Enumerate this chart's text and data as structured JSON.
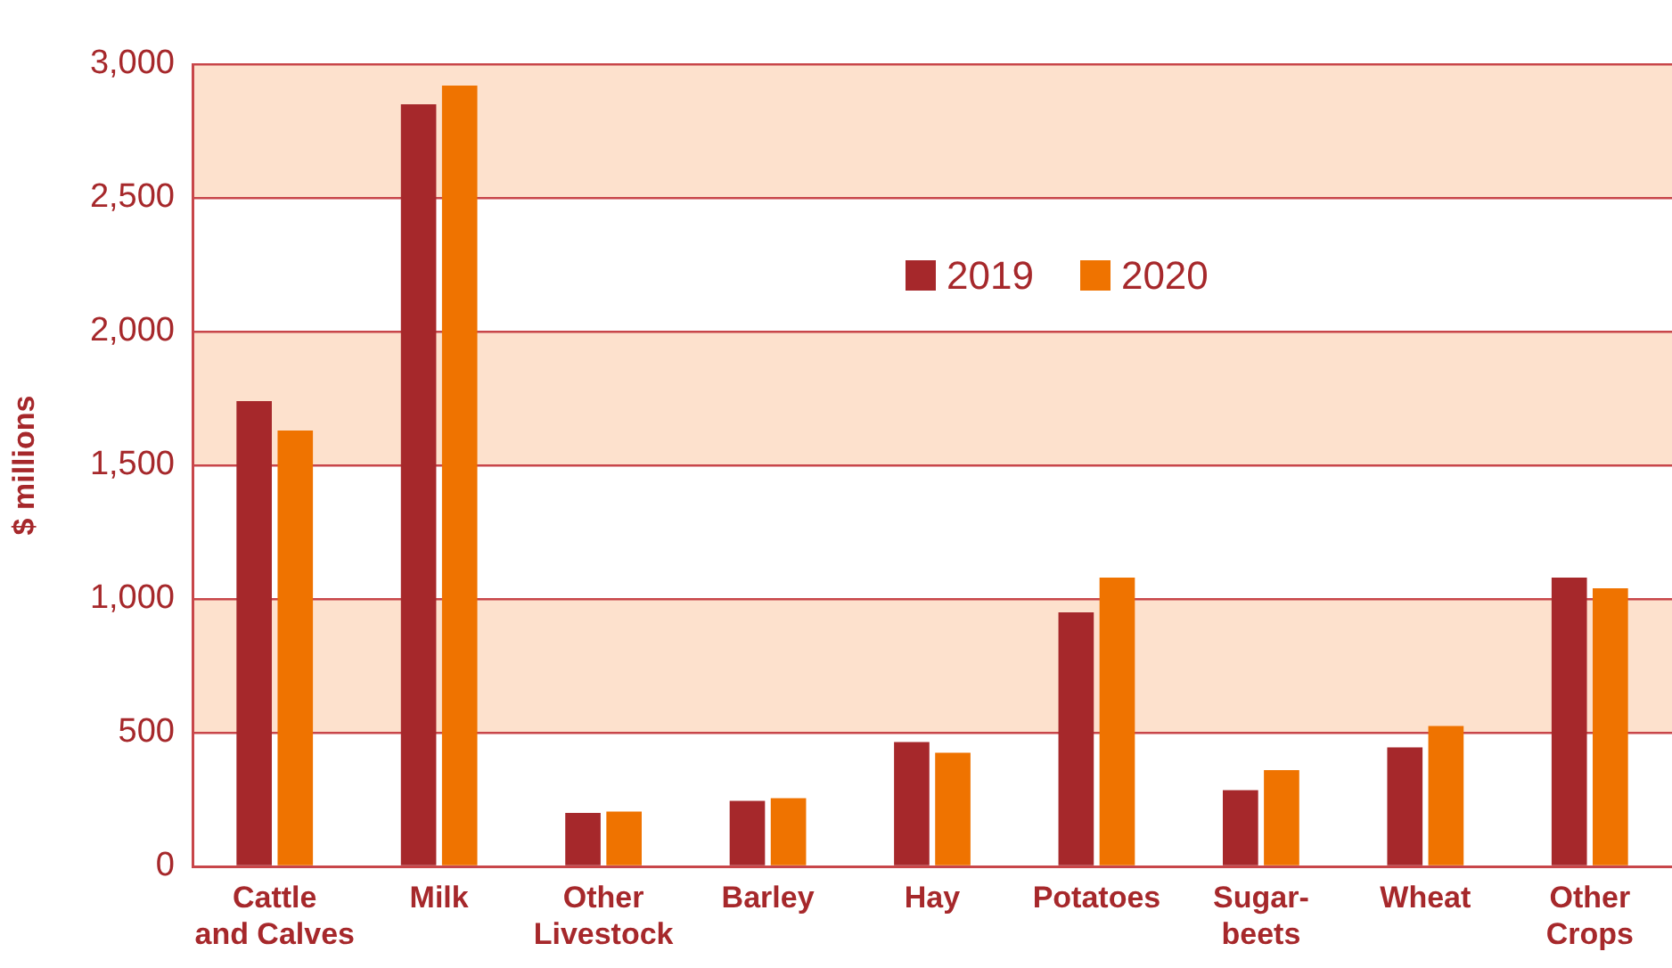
{
  "chart_data": {
    "type": "bar",
    "ylabel": "$ millions",
    "categories": [
      "Cattle\nand Calves",
      "Milk",
      "Other\nLivestock",
      "Barley",
      "Hay",
      "Potatoes",
      "Sugar-\nbeets",
      "Wheat",
      "Other\nCrops"
    ],
    "series": [
      {
        "name": "2019",
        "color": "#a6282b",
        "values": [
          1740,
          2850,
          200,
          245,
          465,
          950,
          285,
          445,
          1080
        ]
      },
      {
        "name": "2020",
        "color": "#ef7300",
        "values": [
          1630,
          2920,
          205,
          255,
          425,
          1080,
          360,
          525,
          1040
        ]
      }
    ],
    "ylim": [
      0,
      3000
    ],
    "yticks": [
      {
        "value": 0,
        "label": "0"
      },
      {
        "value": 500,
        "label": "500"
      },
      {
        "value": 1000,
        "label": "1,000"
      },
      {
        "value": 1500,
        "label": "1,500"
      },
      {
        "value": 2000,
        "label": "2,000"
      },
      {
        "value": 2500,
        "label": "2,500"
      },
      {
        "value": 3000,
        "label": "3,000"
      }
    ],
    "bands": [
      {
        "axis": "y",
        "from": 500,
        "to": 1000,
        "color": "#fde1cd"
      },
      {
        "axis": "y",
        "from": 1500,
        "to": 2000,
        "color": "#fde1cd"
      },
      {
        "axis": "y",
        "from": 2500,
        "to": 3000,
        "color": "#fde1cd"
      }
    ],
    "grid": "y",
    "legend": "top"
  }
}
